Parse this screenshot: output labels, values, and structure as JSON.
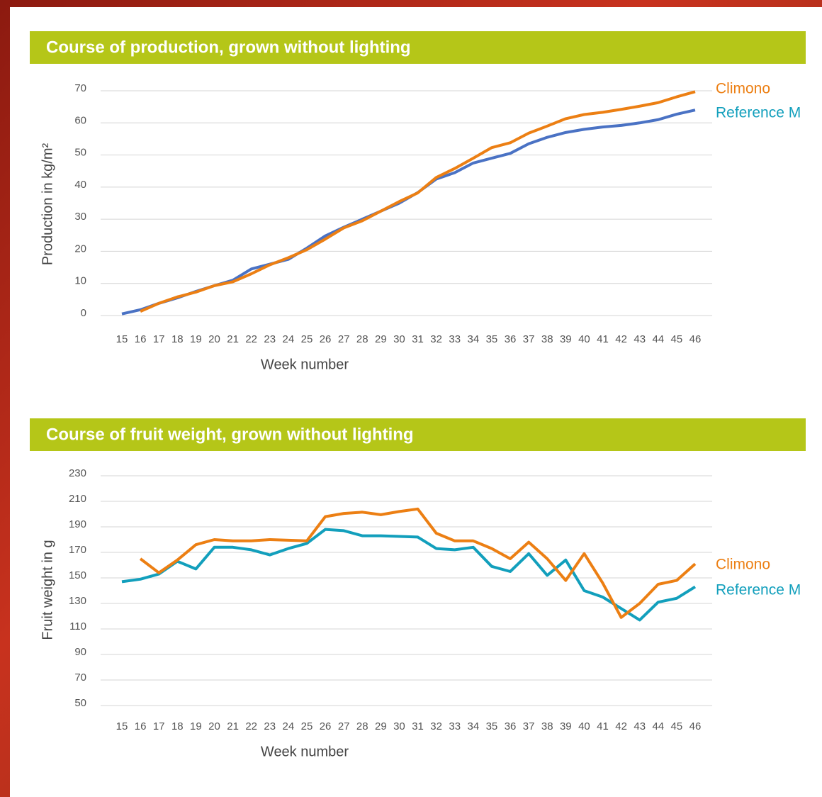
{
  "chart_data": [
    {
      "type": "line",
      "title": "Course of production, grown without lighting",
      "x_label": "Week number",
      "y_label": "Production in kg/m²",
      "categories": [
        15,
        16,
        17,
        18,
        19,
        20,
        21,
        22,
        23,
        24,
        25,
        26,
        27,
        28,
        29,
        30,
        31,
        32,
        33,
        34,
        35,
        36,
        37,
        38,
        39,
        40,
        41,
        42,
        43,
        44,
        45,
        46
      ],
      "ylim": [
        0,
        70
      ],
      "yticks": [
        0,
        10,
        20,
        30,
        40,
        50,
        60,
        70
      ],
      "grid": true,
      "series": [
        {
          "name": "Reference M",
          "color": "#4a72c4",
          "legend_color": "#129fbc",
          "values": [
            0.5,
            1.8,
            3.8,
            5.5,
            7.5,
            9.3,
            11,
            14.5,
            16,
            17.5,
            21,
            24.8,
            27.5,
            30,
            32.5,
            35,
            38.3,
            42.5,
            44.5,
            47.5,
            49,
            50.5,
            53.5,
            55.5,
            57,
            58,
            58.7,
            59.2,
            60,
            61,
            62.7,
            64
          ]
        },
        {
          "name": "Climono",
          "color": "#ec7f13",
          "legend_color": "#ec7f13",
          "values": [
            null,
            1.3,
            3.8,
            5.8,
            7.3,
            9.3,
            10.5,
            13,
            15.8,
            18,
            20.5,
            23.8,
            27.3,
            29.5,
            32.5,
            35.5,
            38.2,
            43,
            45.8,
            49,
            52.3,
            53.8,
            56.8,
            59,
            61.3,
            62.6,
            63.3,
            64.2,
            65.2,
            66.3,
            68.1,
            69.7
          ]
        }
      ]
    },
    {
      "type": "line",
      "title": "Course of fruit weight, grown without lighting",
      "x_label": "Week number",
      "y_label": "Fruit weight in g",
      "categories": [
        15,
        16,
        17,
        18,
        19,
        20,
        21,
        22,
        23,
        24,
        25,
        26,
        27,
        28,
        29,
        30,
        31,
        32,
        33,
        34,
        35,
        36,
        37,
        38,
        39,
        40,
        41,
        42,
        43,
        44,
        45,
        46
      ],
      "ylim": [
        50,
        230
      ],
      "yticks": [
        50,
        70,
        90,
        110,
        130,
        150,
        170,
        190,
        210,
        230
      ],
      "grid": true,
      "series": [
        {
          "name": "Reference M",
          "color": "#129fbc",
          "legend_color": "#129fbc",
          "values": [
            147,
            149,
            153,
            163,
            157,
            174,
            174,
            172,
            168,
            173,
            177,
            188,
            187,
            183,
            183,
            182.5,
            182,
            173,
            172,
            174,
            159,
            155,
            169,
            152,
            164,
            140,
            135,
            126,
            117,
            131,
            134,
            143
          ]
        },
        {
          "name": "Climono",
          "color": "#ec7f13",
          "legend_color": "#ec7f13",
          "values": [
            null,
            165,
            154,
            164,
            176,
            180,
            179,
            179,
            180,
            179.5,
            179,
            198,
            200.5,
            201.5,
            199.5,
            202,
            204,
            185,
            179,
            179,
            173,
            165,
            178,
            165,
            148,
            169,
            146,
            119,
            130,
            145,
            148,
            161
          ]
        }
      ]
    }
  ]
}
